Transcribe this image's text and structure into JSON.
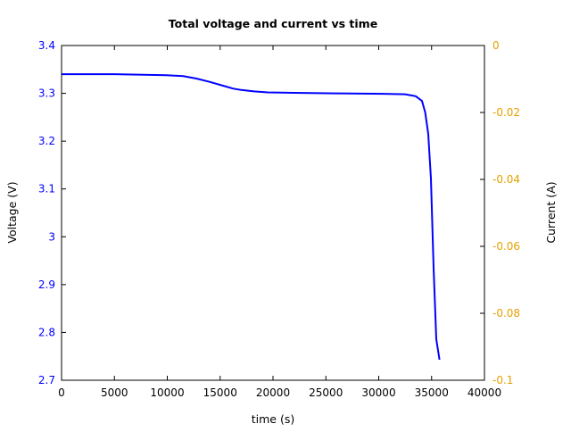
{
  "chart_data": {
    "type": "line",
    "title": "Total voltage and current vs time",
    "xlabel": "time (s)",
    "ylabel": "Voltage (V)",
    "y2label": "Current (A)",
    "xlim": [
      0,
      40000
    ],
    "ylim": [
      2.7,
      3.4
    ],
    "y2lim": [
      -0.1,
      0
    ],
    "xticks": [
      "0",
      "5000",
      "10000",
      "15000",
      "20000",
      "25000",
      "30000",
      "35000",
      "40000"
    ],
    "xtick_values": [
      0,
      5000,
      10000,
      15000,
      20000,
      25000,
      30000,
      35000,
      40000
    ],
    "yticks": [
      "2.7",
      "2.8",
      "2.9",
      "3",
      "3.1",
      "3.2",
      "3.3",
      "3.4"
    ],
    "ytick_values": [
      2.7,
      2.8,
      2.9,
      3.0,
      3.1,
      3.2,
      3.3,
      3.4
    ],
    "y2ticks": [
      "-0.1",
      "-0.08",
      "-0.06",
      "-0.04",
      "-0.02",
      "0"
    ],
    "y2tick_values": [
      -0.1,
      -0.08,
      -0.06,
      -0.04,
      -0.02,
      0
    ],
    "grid": false,
    "colors": {
      "voltage": "#0000ff",
      "current_axis": "#e5a000",
      "axis": "#000000"
    },
    "series": [
      {
        "name": "Voltage",
        "x": [
          0,
          5000,
          9900,
          11500,
          12750,
          14000,
          15270,
          16200,
          17000,
          18200,
          19500,
          22000,
          26000,
          30460,
          32500,
          33500,
          34093,
          34400,
          34683,
          34937,
          35190,
          35443,
          35747
        ],
        "y": [
          3.34,
          3.34,
          3.338,
          3.336,
          3.331,
          3.324,
          3.316,
          3.31,
          3.307,
          3.304,
          3.302,
          3.301,
          3.3,
          3.299,
          3.298,
          3.294,
          3.284,
          3.26,
          3.215,
          3.122,
          2.935,
          2.786,
          2.743
        ]
      }
    ]
  }
}
